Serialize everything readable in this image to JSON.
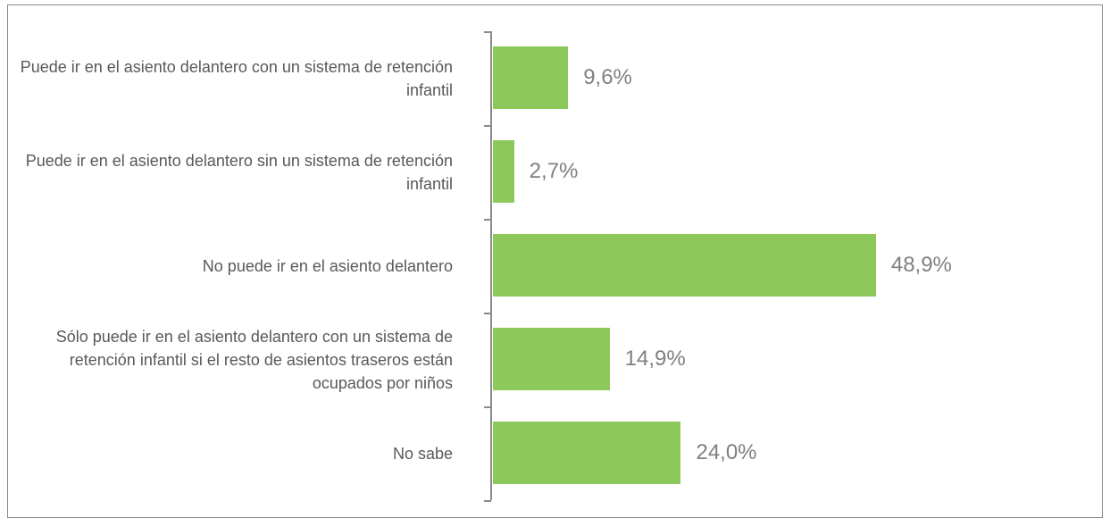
{
  "chart_data": {
    "type": "barh",
    "categories": [
      "Puede ir en el asiento delantero con un sistema de retención infantil",
      "Puede ir en el asiento delantero sin un sistema de retención infantil",
      "No puede ir en el asiento delantero",
      "Sólo puede ir en el asiento delantero con un sistema de retención infantil si el resto de asientos traseros están ocupados por niños",
      "No sabe"
    ],
    "values": [
      9.6,
      2.7,
      48.9,
      14.9,
      24.0
    ],
    "value_labels": [
      "9,6%",
      "2,7%",
      "48,9%",
      "14,9%",
      "24,0%"
    ],
    "color": "#8cc85a"
  }
}
